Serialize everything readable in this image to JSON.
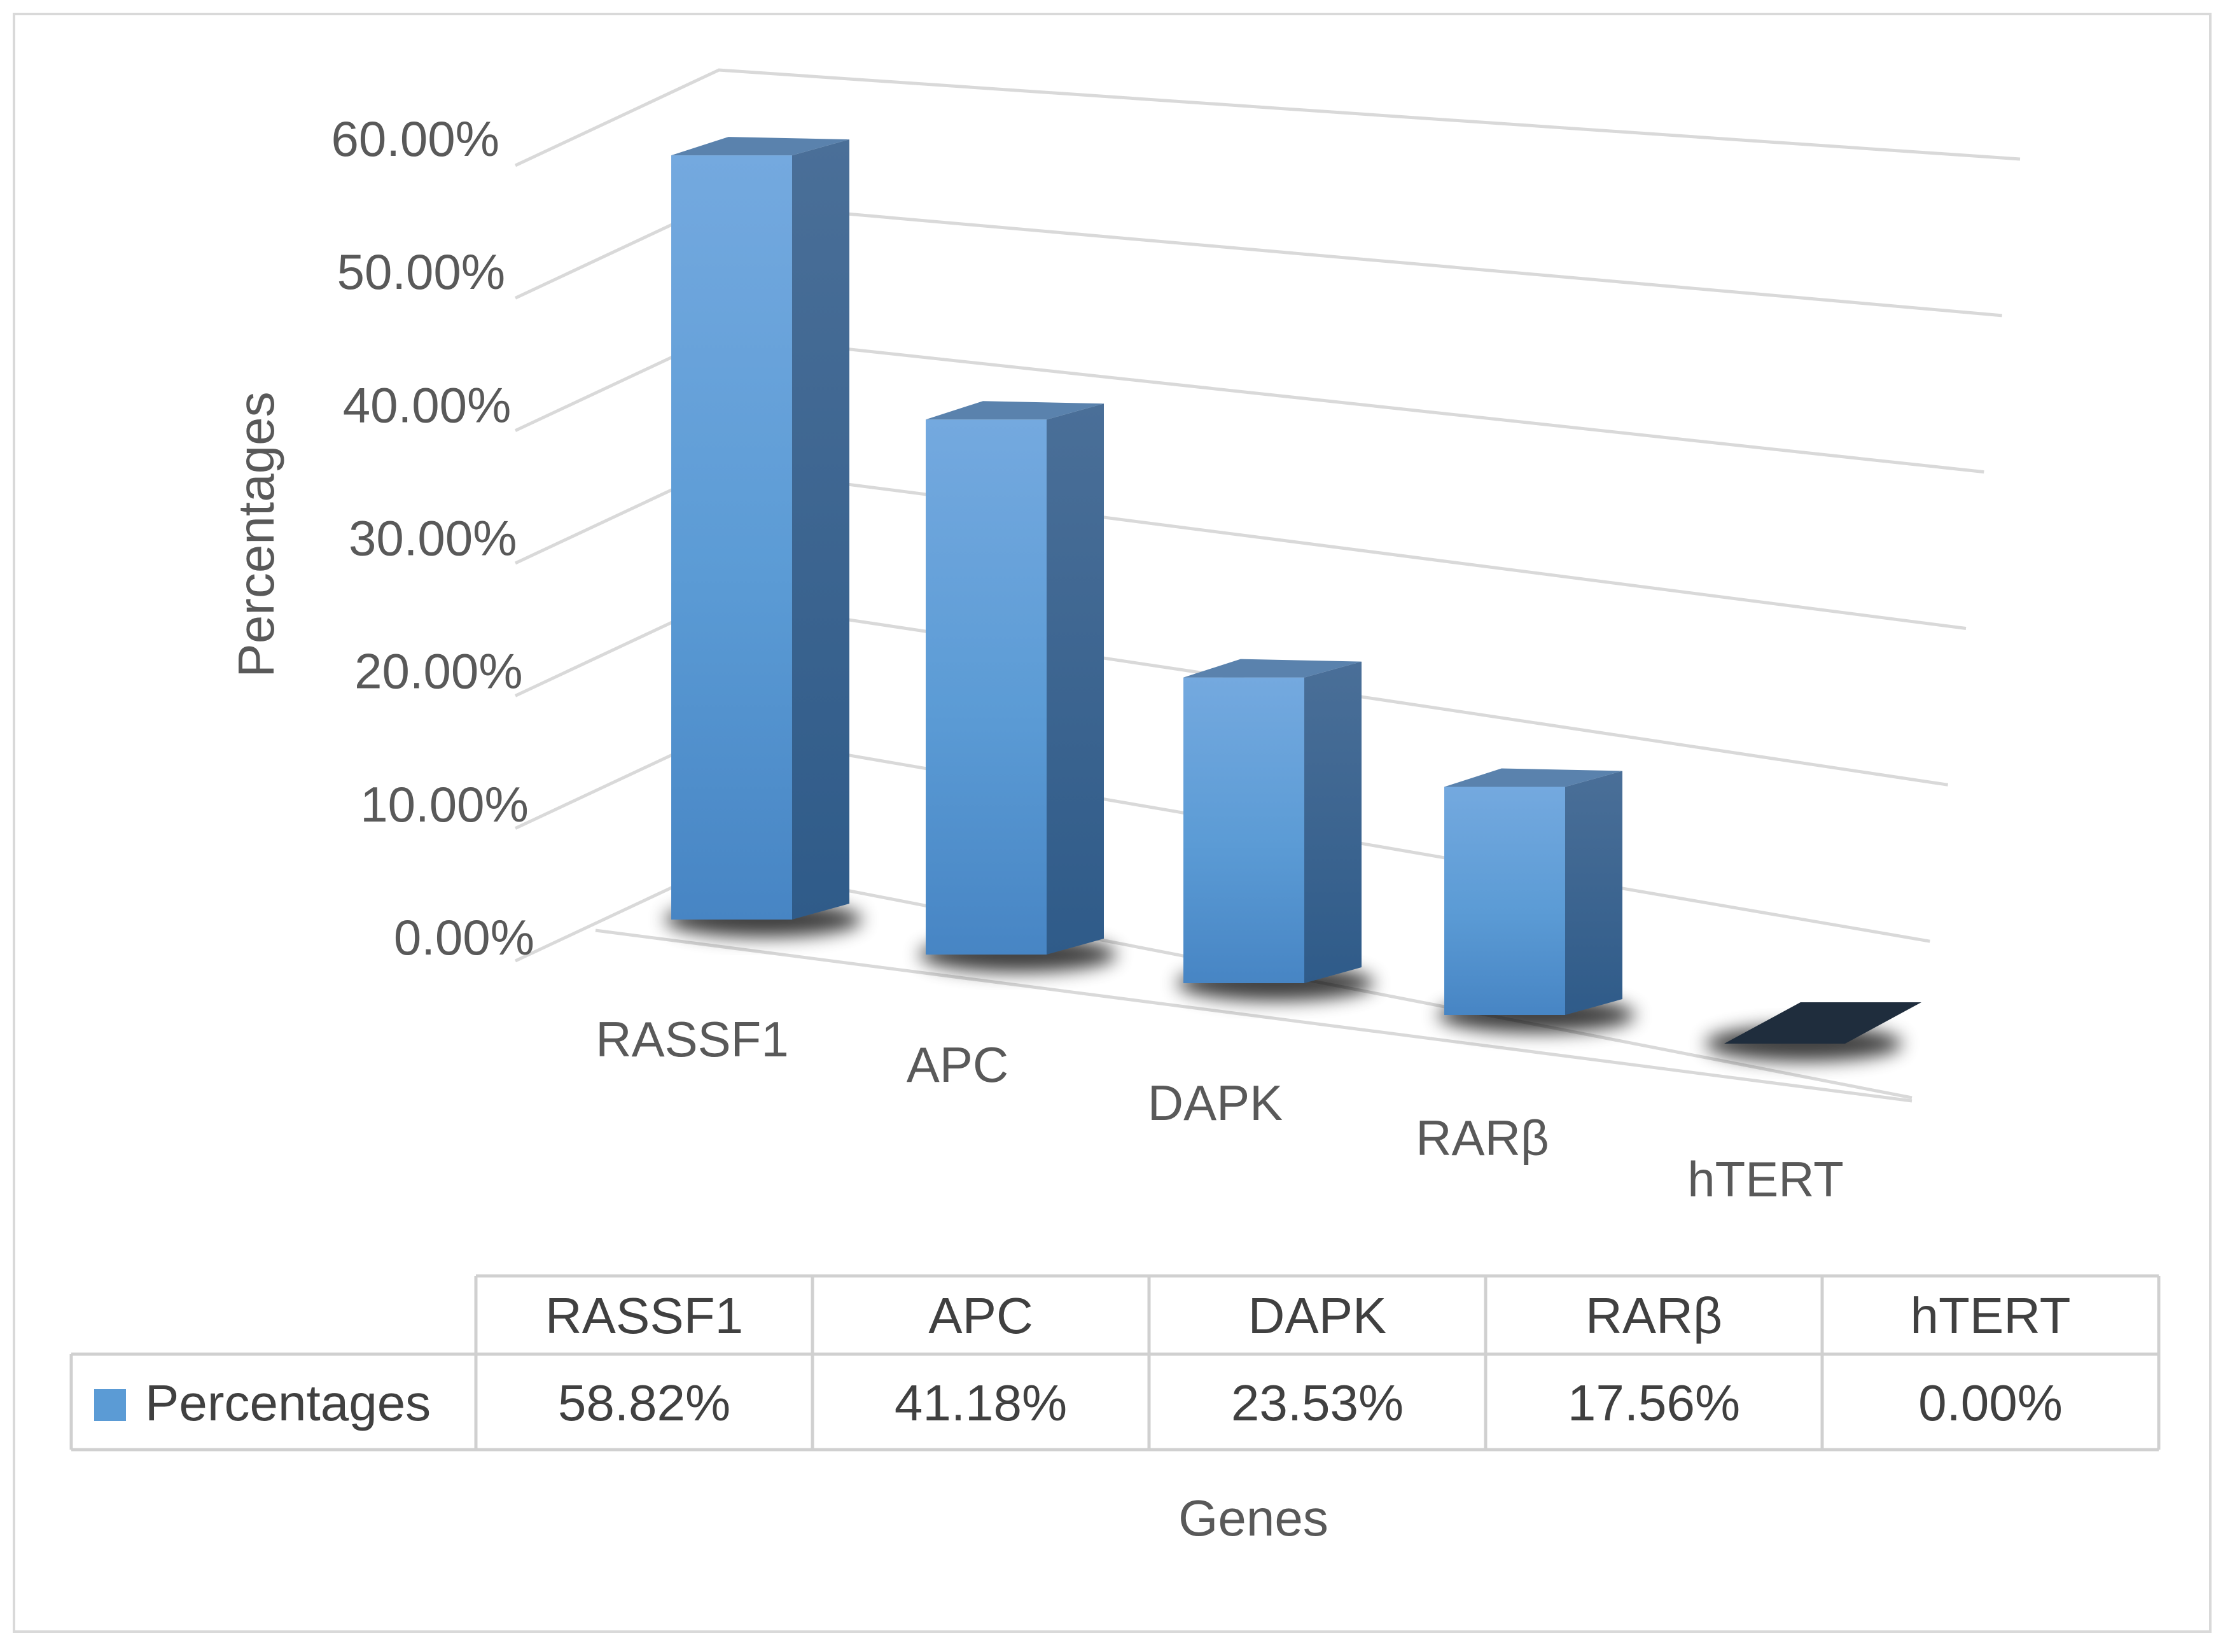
{
  "chart_data": {
    "type": "bar",
    "style": "3d-column",
    "categories": [
      "RASSF1",
      "APC",
      "DAPK",
      "RARβ",
      "hTERT"
    ],
    "series": [
      {
        "name": "Percentages",
        "values": [
          58.82,
          41.18,
          23.53,
          17.56,
          0.0
        ],
        "color": "#5b9bd5"
      }
    ],
    "ylabel": "Percentages",
    "xlabel": "Genes",
    "ylim": [
      0,
      60
    ],
    "yticks": [
      0,
      10,
      20,
      30,
      40,
      50,
      60
    ],
    "ytick_labels": [
      "0.00%",
      "10.00%",
      "20.00%",
      "30.00%",
      "40.00%",
      "50.00%",
      "60.00%"
    ],
    "grid": true,
    "legend": "data-table",
    "data_table": {
      "header": [
        "RASSF1",
        "APC",
        "DAPK",
        "RARβ",
        "hTERT"
      ],
      "row_label": "Percentages",
      "row_values": [
        "58.82%",
        "41.18%",
        "23.53%",
        "17.56%",
        "0.00%"
      ]
    },
    "colors": {
      "bar_front": "#5b9bd5",
      "bar_side": "#3d6f9e",
      "bar_top": "#5a82ad",
      "gridline": "#d9d9d9",
      "text": "#595959",
      "zero_bar": "#1f2d3d"
    }
  }
}
